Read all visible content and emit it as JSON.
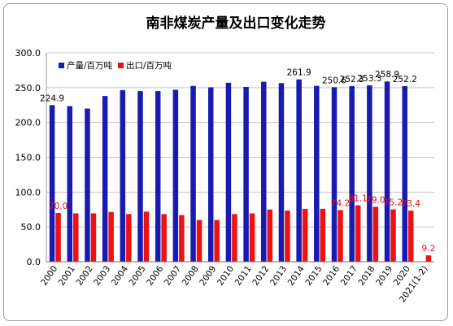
{
  "chart_data": {
    "type": "bar",
    "title": "南非煤炭产量及出口变化走势",
    "categories": [
      "2000",
      "2001",
      "2002",
      "2003",
      "2004",
      "2005",
      "2006",
      "2007",
      "2008",
      "2009",
      "2010",
      "2011",
      "2012",
      "2013",
      "2014",
      "2015",
      "2016",
      "2017",
      "2018",
      "2019",
      "2020",
      "2021(1-2)"
    ],
    "series": [
      {
        "name": "产量/百万吨",
        "color": "#1a1ab0",
        "values": [
          224.9,
          223.5,
          220,
          238,
          246.5,
          245,
          245,
          247,
          252.5,
          250.5,
          257,
          251,
          258.5,
          256.5,
          261.9,
          252.5,
          250.6,
          252.3,
          253.3,
          258.9,
          252.2,
          null
        ],
        "labels": [
          "224.9",
          "",
          "",
          "",
          "",
          "",
          "",
          "",
          "",
          "",
          "",
          "",
          "",
          "",
          "261.9",
          "",
          "250.6",
          "252.3",
          "253.3",
          "258.9",
          "252.2",
          ""
        ]
      },
      {
        "name": "出口/百万吨",
        "color": "#ee1111",
        "values": [
          70.0,
          69.5,
          69.5,
          71.5,
          68.5,
          72,
          68.5,
          67,
          60,
          60,
          68.5,
          69.5,
          75,
          73.5,
          76,
          76,
          74.2,
          81.1,
          79.0,
          75.2,
          73.4,
          9.2
        ],
        "labels": [
          "70.0",
          "",
          "",
          "",
          "",
          "",
          "",
          "",
          "",
          "",
          "",
          "",
          "",
          "",
          "",
          "",
          "74.2",
          "81.1",
          "79.0",
          "75.2",
          "73.4",
          "9.2"
        ]
      }
    ],
    "ylim": [
      0,
      300
    ],
    "yticks": [
      "0.0",
      "50.0",
      "100.0",
      "150.0",
      "200.0",
      "250.0",
      "300.0"
    ],
    "grid": true,
    "legend": "top-left"
  }
}
